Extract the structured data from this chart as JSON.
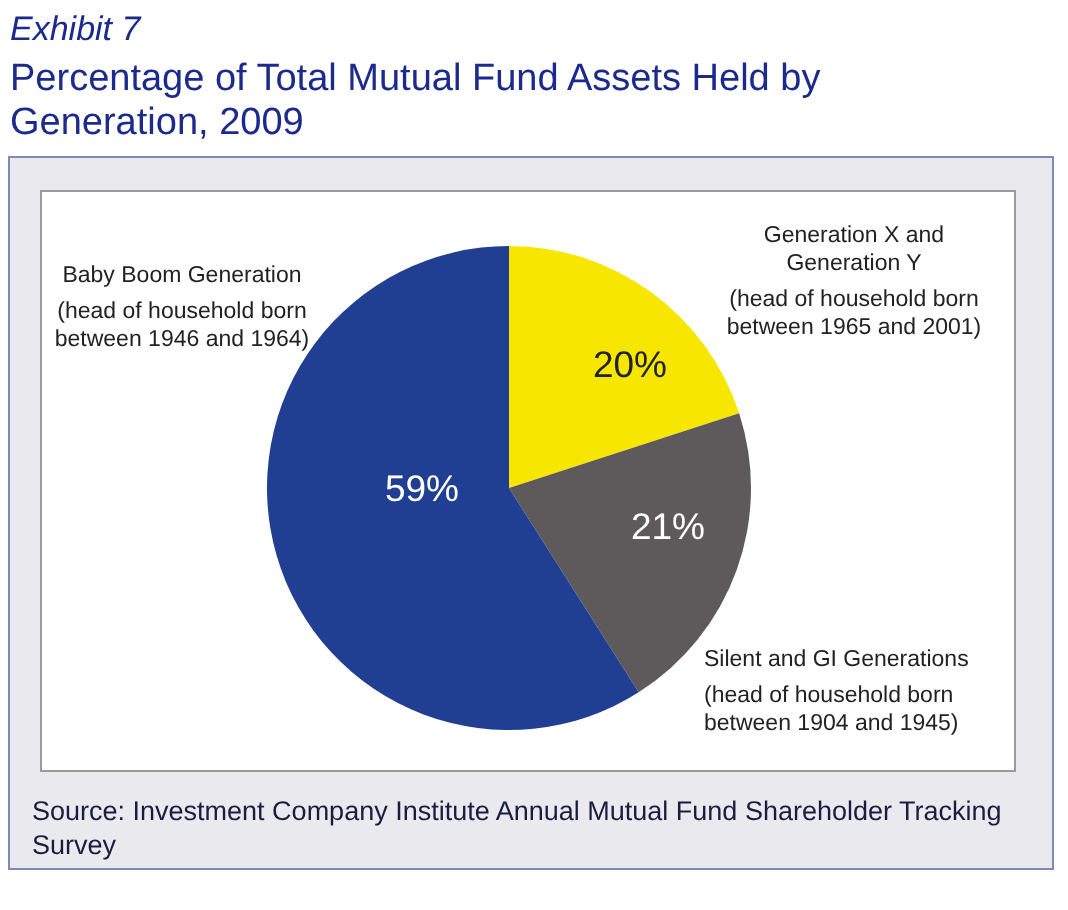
{
  "chart_data": {
    "type": "pie",
    "subtitle": "Exhibit 7",
    "title": "Percentage of Total Mutual Fund Assets Held by Generation, 2009",
    "categories": [
      "Generation X and\nGeneration Y\n(head of household born\nbetween 1965 and 2001)",
      "Silent and GI Generations\n(head of household born\nbetween 1904 and 1945)",
      "Baby Boom Generation\n(head of household born\nbetween 1946 and 1964)"
    ],
    "values": [
      20,
      21,
      59
    ],
    "value_labels": [
      "20%",
      "21%",
      "59%"
    ],
    "colors": [
      "#f7e600",
      "#5e5a5b",
      "#213f92"
    ],
    "annotations": [
      "Source: Investment Company Institute Annual Mutual Fund Shareholder Tracking Survey"
    ]
  }
}
